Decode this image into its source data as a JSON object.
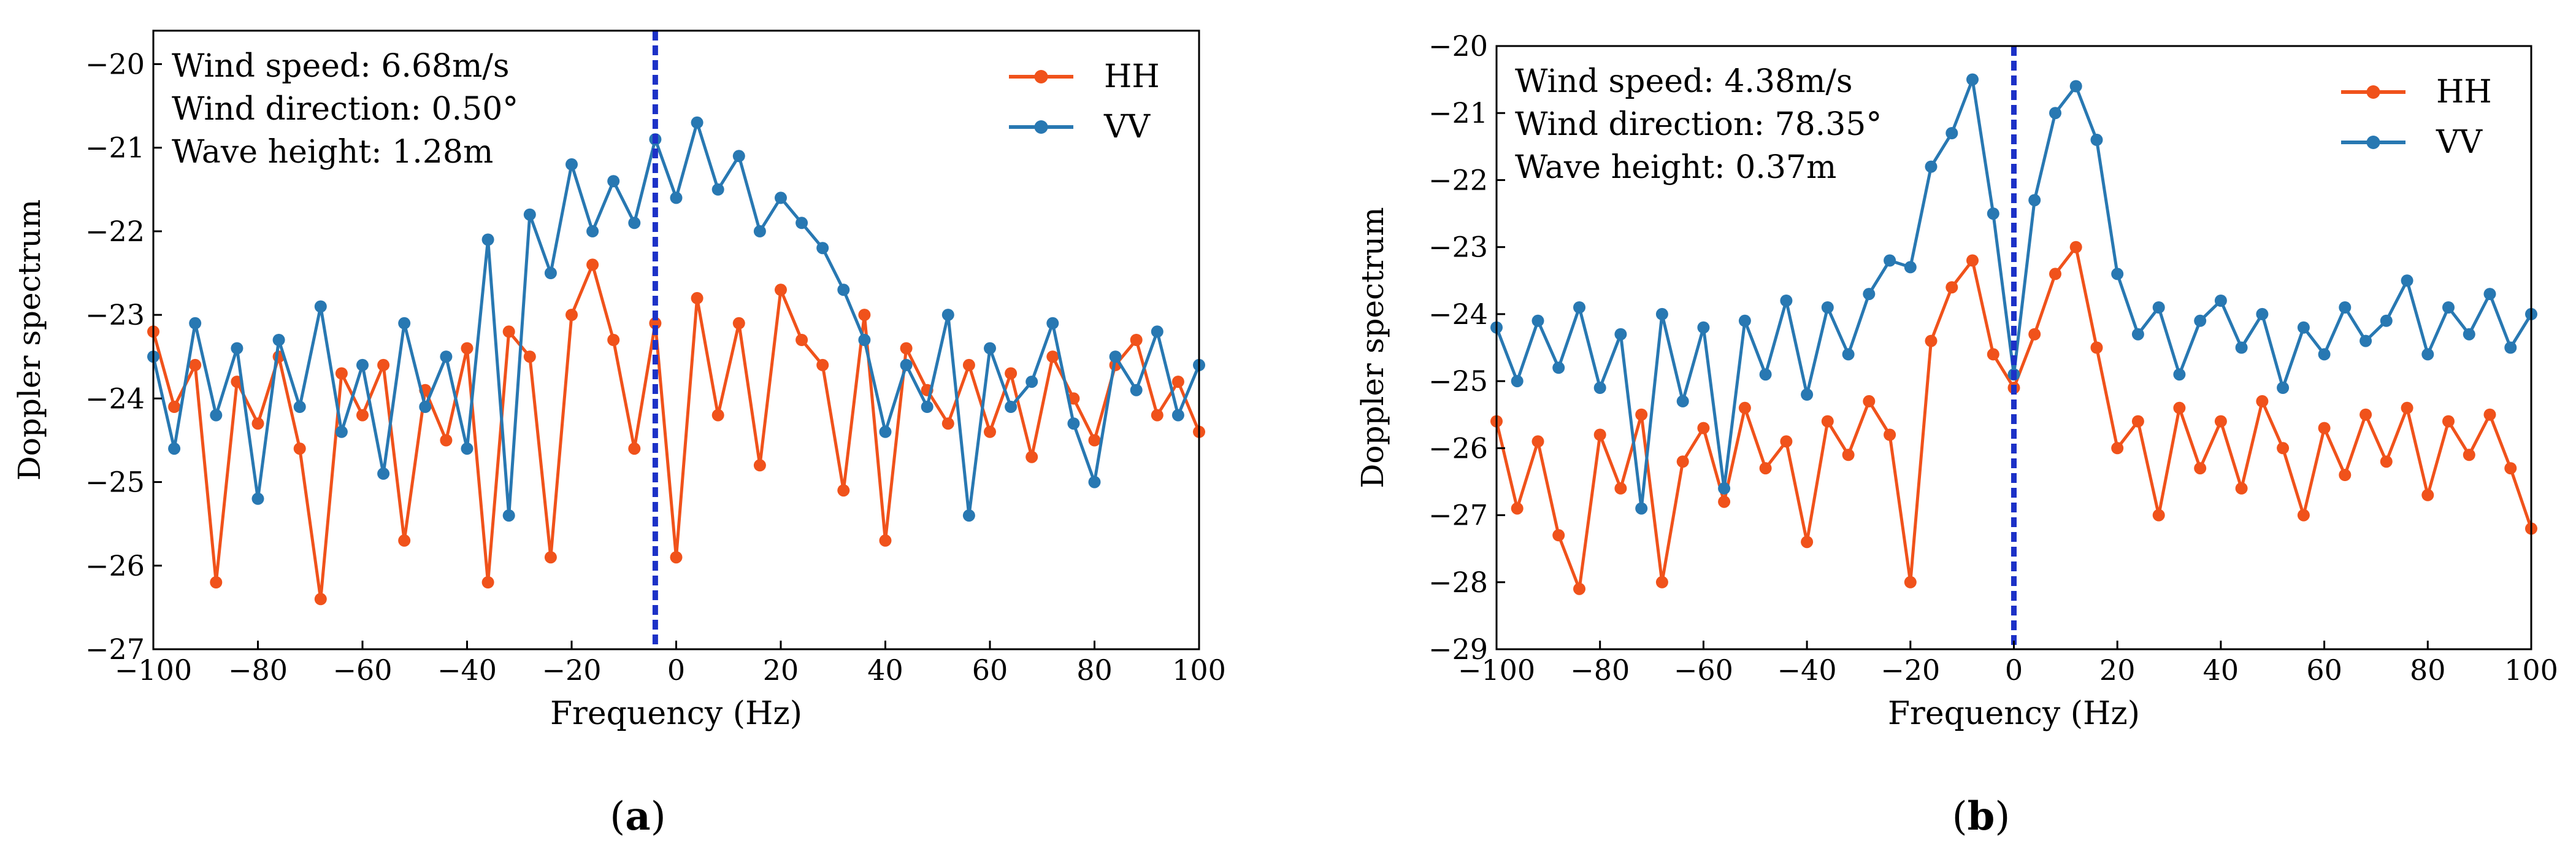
{
  "colors": {
    "HH": "#f0521b",
    "VV": "#2878b2",
    "marker": "#1c31c7"
  },
  "chart_data": [
    {
      "type": "line",
      "title": "",
      "panel_label": "(a)",
      "panel_letter": "a",
      "xlabel": "Frequency (Hz)",
      "ylabel": "Doppler spectrum",
      "xlim": [
        -100,
        100
      ],
      "ylim": [
        -27,
        -19.6
      ],
      "xticks": [
        -100,
        -80,
        -60,
        -40,
        -20,
        0,
        20,
        40,
        60,
        80,
        100
      ],
      "yticks": [
        -27,
        -26,
        -25,
        -24,
        -23,
        -22,
        -21,
        -20
      ],
      "xtick_labels": [
        "−100",
        "−80",
        "−60",
        "−40",
        "−20",
        "0",
        "20",
        "40",
        "60",
        "80",
        "100"
      ],
      "ytick_labels": [
        "−27",
        "−26",
        "−25",
        "−24",
        "−23",
        "−22",
        "−21",
        "−20"
      ],
      "annotations": [
        "Wind speed: 6.68m/s",
        "Wind direction: 0.50°",
        "Wave height: 1.28m"
      ],
      "legend": [
        "HH",
        "VV"
      ],
      "legend_position": "top-right",
      "vline_x": -4,
      "x": [
        -100,
        -96,
        -92,
        -88,
        -84,
        -80,
        -76,
        -72,
        -68,
        -64,
        -60,
        -56,
        -52,
        -48,
        -44,
        -40,
        -36,
        -32,
        -28,
        -24,
        -20,
        -16,
        -12,
        -8,
        -4,
        0,
        4,
        8,
        12,
        16,
        20,
        24,
        28,
        32,
        36,
        40,
        44,
        48,
        52,
        56,
        60,
        64,
        68,
        72,
        76,
        80,
        84,
        88,
        92,
        96,
        100
      ],
      "series": [
        {
          "name": "HH",
          "values": [
            -23.2,
            -24.1,
            -23.6,
            -26.2,
            -23.8,
            -24.3,
            -23.5,
            -24.6,
            -26.4,
            -23.7,
            -24.2,
            -23.6,
            -25.7,
            -23.9,
            -24.5,
            -23.4,
            -26.2,
            -23.2,
            -23.5,
            -25.9,
            -23.0,
            -22.4,
            -23.3,
            -24.6,
            -23.1,
            -25.9,
            -22.8,
            -24.2,
            -23.1,
            -24.8,
            -22.7,
            -23.3,
            -23.6,
            -25.1,
            -23.0,
            -25.7,
            -23.4,
            -23.9,
            -24.3,
            -23.6,
            -24.4,
            -23.7,
            -24.7,
            -23.5,
            -24.0,
            -24.5,
            -23.6,
            -23.3,
            -24.2,
            -23.8,
            -24.4
          ]
        },
        {
          "name": "VV",
          "values": [
            -23.5,
            -24.6,
            -23.1,
            -24.2,
            -23.4,
            -25.2,
            -23.3,
            -24.1,
            -22.9,
            -24.4,
            -23.6,
            -24.9,
            -23.1,
            -24.1,
            -23.5,
            -24.6,
            -22.1,
            -25.4,
            -21.8,
            -22.5,
            -21.2,
            -22.0,
            -21.4,
            -21.9,
            -20.9,
            -21.6,
            -20.7,
            -21.5,
            -21.1,
            -22.0,
            -21.6,
            -21.9,
            -22.2,
            -22.7,
            -23.3,
            -24.4,
            -23.6,
            -24.1,
            -23.0,
            -25.4,
            -23.4,
            -24.1,
            -23.8,
            -23.1,
            -24.3,
            -25.0,
            -23.5,
            -23.9,
            -23.2,
            -24.2,
            -23.6
          ]
        }
      ]
    },
    {
      "type": "line",
      "title": "",
      "panel_label": "(b)",
      "panel_letter": "b",
      "xlabel": "Frequency (Hz)",
      "ylabel": "Doppler spectrum",
      "xlim": [
        -100,
        100
      ],
      "ylim": [
        -29,
        -20
      ],
      "xticks": [
        -100,
        -80,
        -60,
        -40,
        -20,
        0,
        20,
        40,
        60,
        80,
        100
      ],
      "yticks": [
        -29,
        -28,
        -27,
        -26,
        -25,
        -24,
        -23,
        -22,
        -21,
        -20
      ],
      "xtick_labels": [
        "−100",
        "−80",
        "−60",
        "−40",
        "−20",
        "0",
        "20",
        "40",
        "60",
        "80",
        "100"
      ],
      "ytick_labels": [
        "−29",
        "−28",
        "−27",
        "−26",
        "−25",
        "−24",
        "−23",
        "−22",
        "−21",
        "−20"
      ],
      "annotations": [
        "Wind speed: 4.38m/s",
        "Wind direction: 78.35°",
        "Wave height: 0.37m"
      ],
      "legend": [
        "HH",
        "VV"
      ],
      "legend_position": "top-right",
      "vline_x": 0,
      "x": [
        -100,
        -96,
        -92,
        -88,
        -84,
        -80,
        -76,
        -72,
        -68,
        -64,
        -60,
        -56,
        -52,
        -48,
        -44,
        -40,
        -36,
        -32,
        -28,
        -24,
        -20,
        -16,
        -12,
        -8,
        -4,
        0,
        4,
        8,
        12,
        16,
        20,
        24,
        28,
        32,
        36,
        40,
        44,
        48,
        52,
        56,
        60,
        64,
        68,
        72,
        76,
        80,
        84,
        88,
        92,
        96,
        100
      ],
      "series": [
        {
          "name": "HH",
          "values": [
            -25.6,
            -26.9,
            -25.9,
            -27.3,
            -28.1,
            -25.8,
            -26.6,
            -25.5,
            -28.0,
            -26.2,
            -25.7,
            -26.8,
            -25.4,
            -26.3,
            -25.9,
            -27.4,
            -25.6,
            -26.1,
            -25.3,
            -25.8,
            -28.0,
            -24.4,
            -23.6,
            -23.2,
            -24.6,
            -25.1,
            -24.3,
            -23.4,
            -23.0,
            -24.5,
            -26.0,
            -25.6,
            -27.0,
            -25.4,
            -26.3,
            -25.6,
            -26.6,
            -25.3,
            -26.0,
            -27.0,
            -25.7,
            -26.4,
            -25.5,
            -26.2,
            -25.4,
            -26.7,
            -25.6,
            -26.1,
            -25.5,
            -26.3,
            -27.2
          ]
        },
        {
          "name": "VV",
          "values": [
            -24.2,
            -25.0,
            -24.1,
            -24.8,
            -23.9,
            -25.1,
            -24.3,
            -26.9,
            -24.0,
            -25.3,
            -24.2,
            -26.6,
            -24.1,
            -24.9,
            -23.8,
            -25.2,
            -23.9,
            -24.6,
            -23.7,
            -23.2,
            -23.3,
            -21.8,
            -21.3,
            -20.5,
            -22.5,
            -24.9,
            -22.3,
            -21.0,
            -20.6,
            -21.4,
            -23.4,
            -24.3,
            -23.9,
            -24.9,
            -24.1,
            -23.8,
            -24.5,
            -24.0,
            -25.1,
            -24.2,
            -24.6,
            -23.9,
            -24.4,
            -24.1,
            -23.5,
            -24.6,
            -23.9,
            -24.3,
            -23.7,
            -24.5,
            -24.0
          ]
        }
      ]
    }
  ]
}
